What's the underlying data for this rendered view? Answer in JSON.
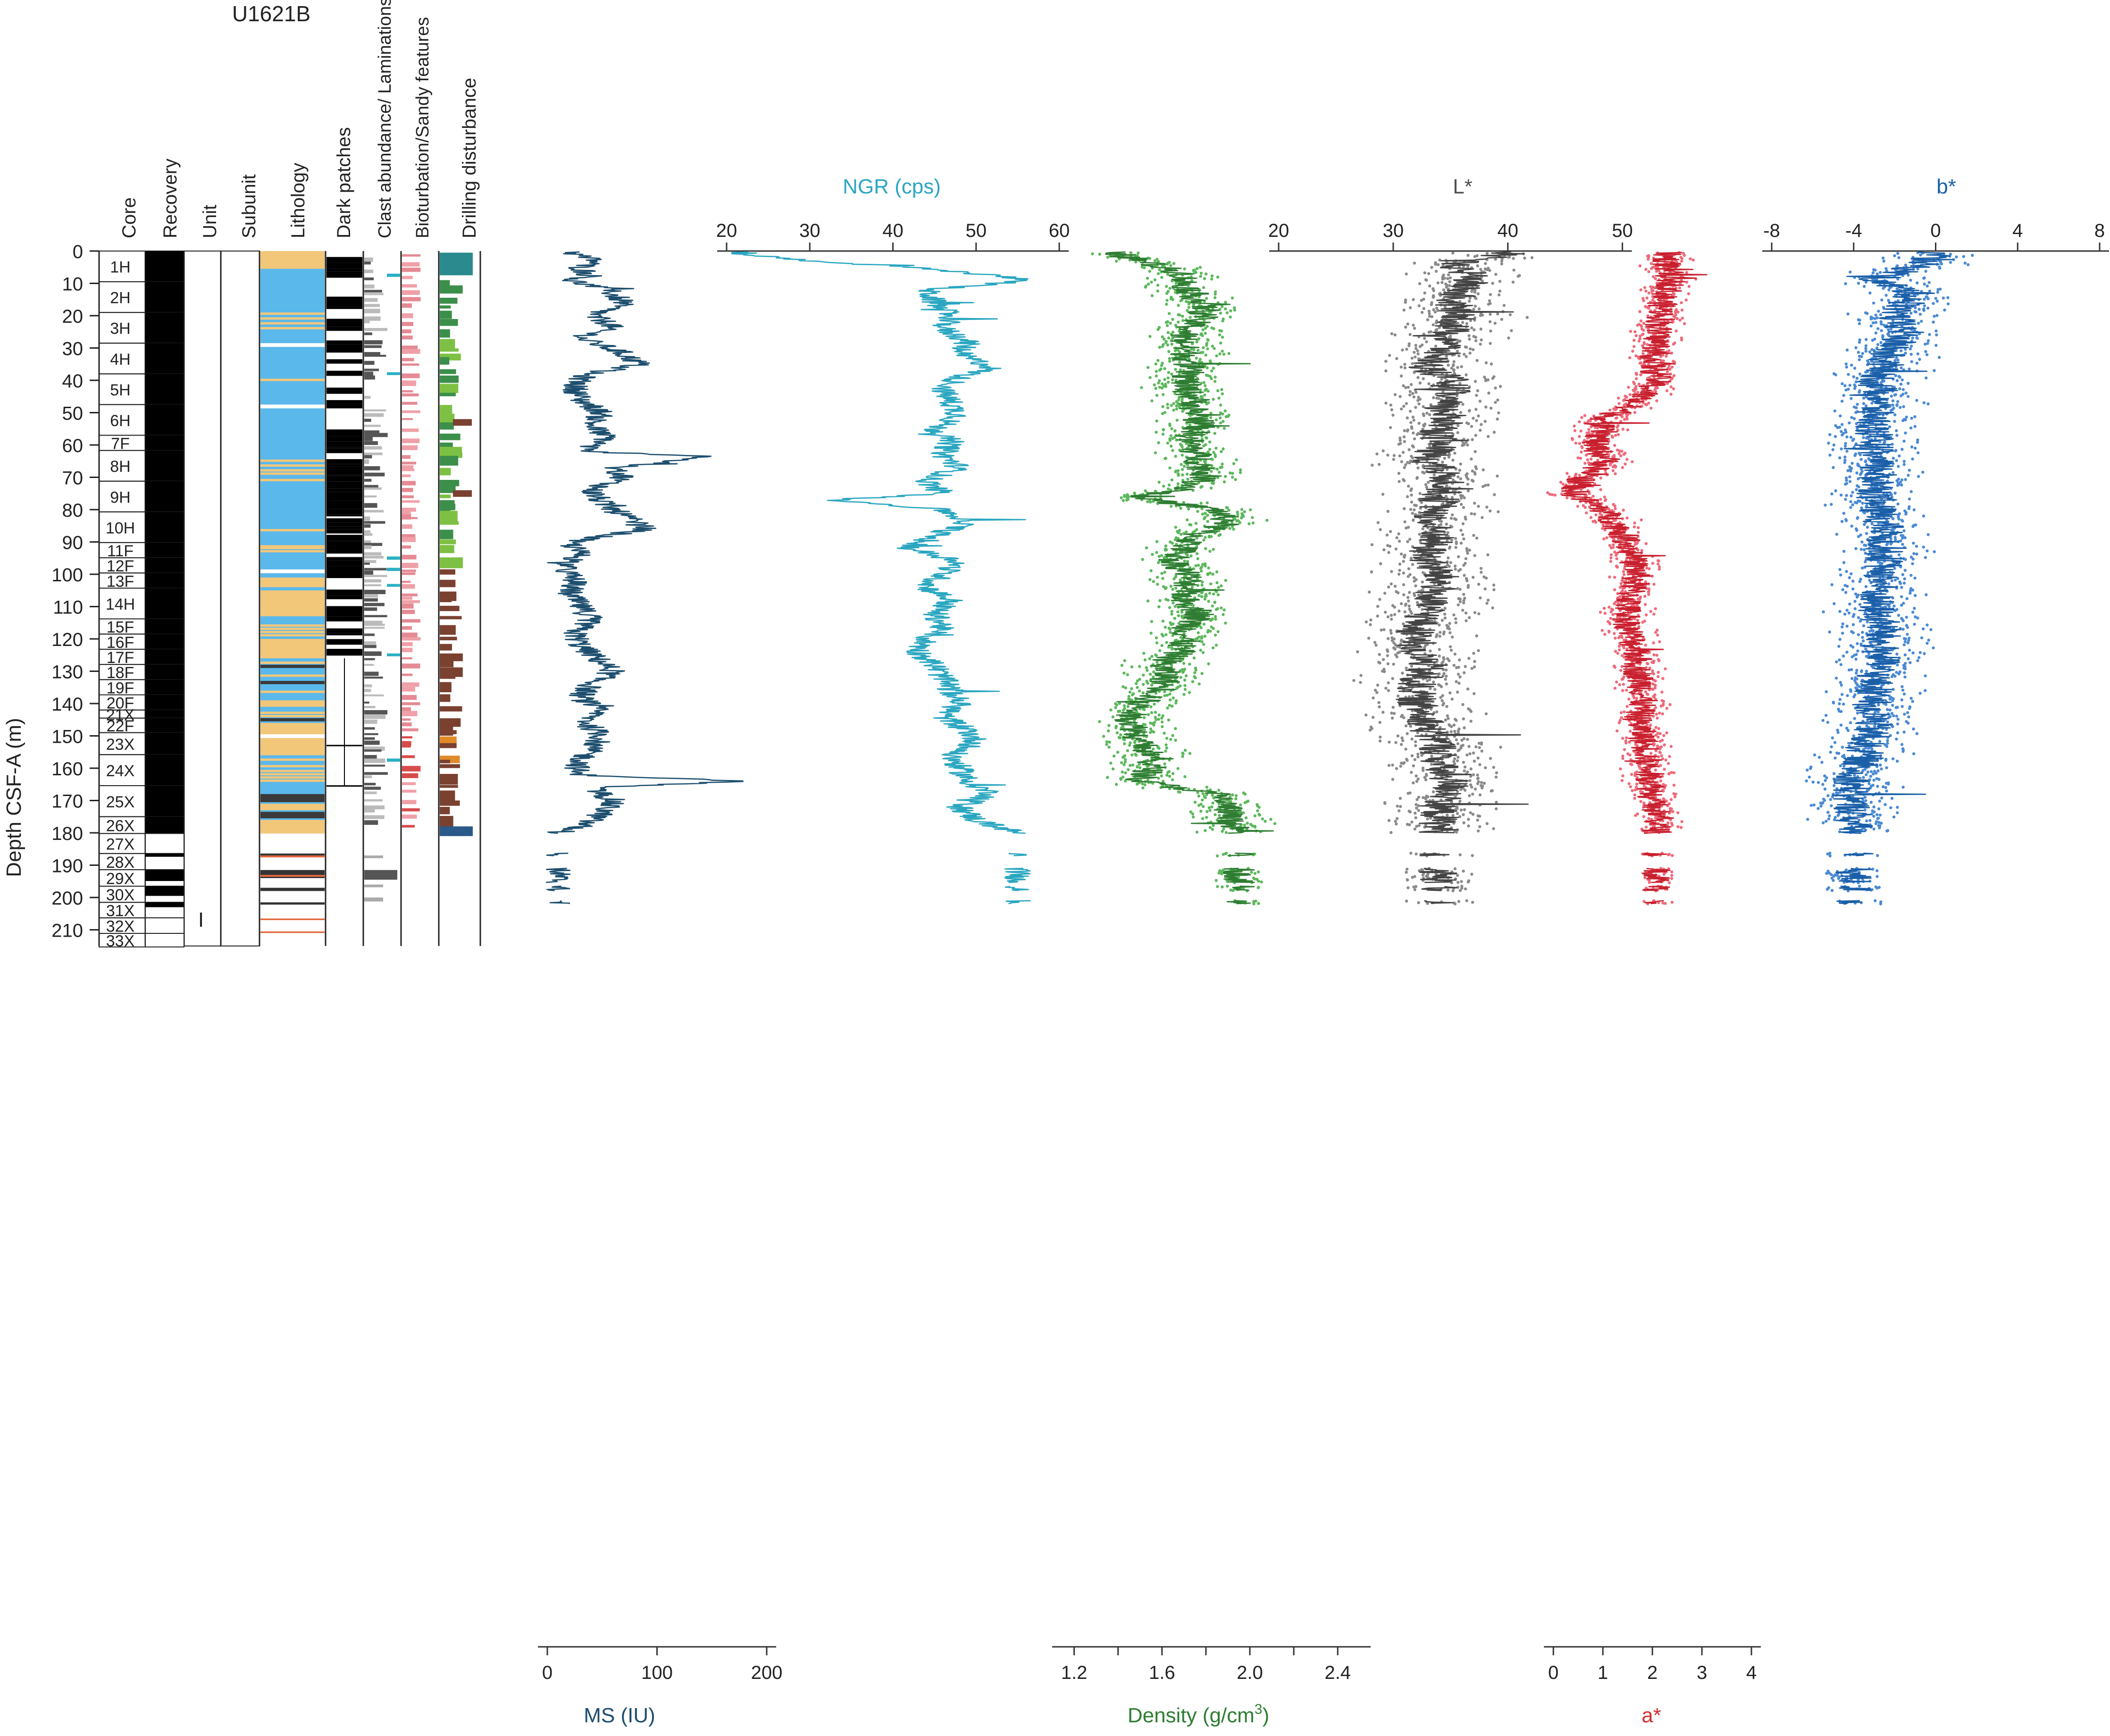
{
  "chart_data": {
    "type": "well-log",
    "title": "U1621B",
    "ylabel": "Depth CSF-A (m)",
    "ylim": [
      0,
      215
    ],
    "yticks": [
      0,
      10,
      20,
      30,
      40,
      50,
      60,
      70,
      80,
      90,
      100,
      110,
      120,
      130,
      140,
      150,
      160,
      170,
      180,
      190,
      200,
      210
    ],
    "column_headers": [
      "Core",
      "Recovery",
      "Unit",
      "Subunit",
      "Lithology",
      "Dark patches",
      "Clast abundance/ Laminations",
      "Bioturbation/Sandy features",
      "Drilling disturbance"
    ],
    "unit_label": "I",
    "cores": [
      {
        "name": "1H",
        "top": 0,
        "bottom": 9.5,
        "recovered": 9.5
      },
      {
        "name": "2H",
        "top": 9.5,
        "bottom": 19,
        "recovered": 9.5
      },
      {
        "name": "3H",
        "top": 19,
        "bottom": 28.5,
        "recovered": 9.5
      },
      {
        "name": "4H",
        "top": 28.5,
        "bottom": 38,
        "recovered": 9.5
      },
      {
        "name": "5H",
        "top": 38,
        "bottom": 47.5,
        "recovered": 9.5
      },
      {
        "name": "6H",
        "top": 47.5,
        "bottom": 57,
        "recovered": 9.5
      },
      {
        "name": "7F",
        "top": 57,
        "bottom": 61.7,
        "recovered": 4.7
      },
      {
        "name": "8H",
        "top": 61.7,
        "bottom": 71.2,
        "recovered": 9.5
      },
      {
        "name": "9H",
        "top": 71.2,
        "bottom": 80.7,
        "recovered": 9.5
      },
      {
        "name": "10H",
        "top": 80.7,
        "bottom": 90.2,
        "recovered": 9.5
      },
      {
        "name": "11F",
        "top": 90.2,
        "bottom": 94.9,
        "recovered": 4.7
      },
      {
        "name": "12F",
        "top": 94.9,
        "bottom": 99.6,
        "recovered": 4.7
      },
      {
        "name": "13F",
        "top": 99.6,
        "bottom": 104.3,
        "recovered": 4.7
      },
      {
        "name": "14H",
        "top": 104.3,
        "bottom": 113.8,
        "recovered": 9.5
      },
      {
        "name": "15F",
        "top": 113.8,
        "bottom": 118.5,
        "recovered": 4.7
      },
      {
        "name": "16F",
        "top": 118.5,
        "bottom": 123.2,
        "recovered": 4.7
      },
      {
        "name": "17F",
        "top": 123.2,
        "bottom": 127.9,
        "recovered": 4.7
      },
      {
        "name": "18F",
        "top": 127.9,
        "bottom": 132.6,
        "recovered": 4.7
      },
      {
        "name": "19F",
        "top": 132.6,
        "bottom": 137.3,
        "recovered": 4.7
      },
      {
        "name": "20F",
        "top": 137.3,
        "bottom": 142,
        "recovered": 4.7
      },
      {
        "name": "21X",
        "top": 142,
        "bottom": 144.5,
        "recovered": 2.5
      },
      {
        "name": "22F",
        "top": 144.5,
        "bottom": 149,
        "recovered": 4.5
      },
      {
        "name": "23X",
        "top": 149,
        "bottom": 155.8,
        "recovered": 6.8
      },
      {
        "name": "24X",
        "top": 155.8,
        "bottom": 165.4,
        "recovered": 9.6
      },
      {
        "name": "25X",
        "top": 165.4,
        "bottom": 175,
        "recovered": 9.6
      },
      {
        "name": "26X",
        "top": 175,
        "bottom": 180.2,
        "recovered": 5.2
      },
      {
        "name": "27X",
        "top": 180.2,
        "bottom": 186.4,
        "recovered": 0
      },
      {
        "name": "28X",
        "top": 186.4,
        "bottom": 191.4,
        "recovered": 1.0
      },
      {
        "name": "29X",
        "top": 191.4,
        "bottom": 196.5,
        "recovered": 3.5
      },
      {
        "name": "30X",
        "top": 196.5,
        "bottom": 201.5,
        "recovered": 3.0
      },
      {
        "name": "31X",
        "top": 201.5,
        "bottom": 206.3,
        "recovered": 1.5
      },
      {
        "name": "32X",
        "top": 206.3,
        "bottom": 211.1,
        "recovered": 0
      },
      {
        "name": "33X",
        "top": 211.1,
        "bottom": 215.3,
        "recovered": 0
      }
    ],
    "tracks": [
      {
        "name": "MS",
        "label": "MS (IU)",
        "axis_side": "bottom",
        "range": [
          0,
          200
        ],
        "ticks": [
          0,
          100,
          200
        ],
        "color": "#1d4e6e",
        "series": [
          {
            "depth": [
              1,
              3,
              5,
              8,
              9,
              12,
              16,
              20,
              23,
              27,
              31,
              35,
              38,
              42,
              46,
              50,
              54,
              58,
              62,
              63.5,
              67,
              70,
              74,
              78,
              82,
              86,
              90,
              94,
              98,
              102,
              106,
              110,
              114,
              118,
              122,
              126,
              130,
              134,
              138,
              142,
              146,
              150,
              154,
              158,
              162,
              164,
              166,
              170,
              174,
              178,
              180
            ],
            "value": [
              25,
              45,
              30,
              40,
              20,
              55,
              70,
              40,
              60,
              30,
              65,
              85,
              35,
              25,
              30,
              50,
              40,
              55,
              30,
              150,
              60,
              70,
              40,
              50,
              70,
              90,
              20,
              30,
              15,
              25,
              20,
              30,
              40,
              25,
              30,
              45,
              60,
              40,
              30,
              45,
              35,
              50,
              40,
              30,
              25,
              180,
              40,
              60,
              50,
              30,
              10
            ]
          }
        ]
      },
      {
        "name": "NGR",
        "label": "NGR (cps)",
        "axis_side": "top",
        "range": [
          20,
          60
        ],
        "ticks": [
          20,
          30,
          40,
          50,
          60
        ],
        "color": "#2aa6c0",
        "series": [
          {
            "depth": [
              1,
              3,
              5,
              7,
              9,
              12,
              16,
              20,
              24,
              28,
              32,
              36,
              39,
              43,
              47,
              51,
              55,
              59,
              63,
              67,
              71,
              75,
              77,
              80,
              84,
              88,
              92,
              96,
              100,
              104,
              108,
              112,
              116,
              120,
              124,
              128,
              132,
              136,
              140,
              144,
              148,
              152,
              156,
              160,
              164,
              168,
              172,
              176,
              180
            ],
            "value": [
              22,
              30,
              42,
              50,
              57,
              44,
              45,
              47,
              46,
              49,
              48,
              52,
              48,
              46,
              47,
              48,
              45,
              47,
              46,
              48,
              44,
              46,
              33,
              46,
              49,
              45,
              42,
              48,
              46,
              44,
              47,
              45,
              46,
              44,
              43,
              45,
              46,
              47,
              48,
              46,
              49,
              50,
              47,
              48,
              49,
              52,
              48,
              50,
              55
            ]
          }
        ]
      },
      {
        "name": "Density",
        "label": "Density (g/cm3)",
        "axis_side": "bottom",
        "range": [
          1.1,
          2.55
        ],
        "ticks": [
          1.2,
          1.6,
          2.0,
          2.4
        ],
        "color": "#2e7d32",
        "series": [
          {
            "depth": [
              0,
              2,
              4,
              7,
              10,
              14,
              18,
              22,
              26,
              30,
              34,
              38,
              42,
              46,
              50,
              54,
              58,
              62,
              66,
              70,
              74,
              76,
              80,
              84,
              88,
              92,
              96,
              100,
              104,
              108,
              112,
              116,
              120,
              124,
              128,
              132,
              136,
              140,
              144,
              148,
              152,
              156,
              160,
              164,
              168,
              172,
              176,
              180
            ],
            "value": [
              1.35,
              1.45,
              1.55,
              1.7,
              1.7,
              1.75,
              1.8,
              1.75,
              1.7,
              1.7,
              1.72,
              1.72,
              1.7,
              1.75,
              1.75,
              1.78,
              1.72,
              1.75,
              1.78,
              1.8,
              1.7,
              1.45,
              1.85,
              1.9,
              1.75,
              1.7,
              1.65,
              1.72,
              1.72,
              1.7,
              1.78,
              1.72,
              1.7,
              1.68,
              1.6,
              1.62,
              1.6,
              1.5,
              1.45,
              1.48,
              1.5,
              1.55,
              1.55,
              1.5,
              1.85,
              1.9,
              1.9,
              1.95
            ]
          }
        ]
      },
      {
        "name": "L*",
        "label": "L*",
        "axis_side": "top",
        "range": [
          20,
          55
        ],
        "ticks": [
          20,
          30,
          40,
          50
        ],
        "color": "#505050",
        "series": [
          {
            "depth": [
              1,
              4,
              8,
              12,
              16,
              20,
              24,
              28,
              32,
              36,
              40,
              44,
              48,
              52,
              56,
              60,
              64,
              68,
              72,
              76,
              80,
              84,
              88,
              92,
              96,
              100,
              104,
              108,
              112,
              116,
              120,
              124,
              128,
              132,
              136,
              140,
              144,
              148,
              152,
              156,
              160,
              164,
              168,
              172,
              176,
              180
            ],
            "value": [
              40,
              35,
              37,
              36,
              35,
              36,
              35,
              35,
              34,
              33,
              35,
              35,
              34,
              35,
              34,
              34,
              33,
              34,
              35,
              34,
              34,
              33,
              34,
              33,
              33,
              34,
              34,
              33,
              33,
              32,
              32,
              32,
              33,
              32,
              32,
              32,
              33,
              33,
              34,
              34,
              34,
              35,
              35,
              34,
              34,
              34
            ]
          }
        ]
      },
      {
        "name": "a*",
        "label": "a*",
        "axis_side": "bottom",
        "range": [
          -0.45,
          4.6
        ],
        "ticks": [
          0,
          1,
          2,
          3,
          4
        ],
        "color": "#d32f2f",
        "series": [
          {
            "depth": [
              1,
              5,
              10,
              15,
              20,
              25,
              30,
              35,
              40,
              45,
              50,
              53,
              56,
              60,
              65,
              70,
              75,
              80,
              85,
              90,
              95,
              100,
              105,
              110,
              115,
              120,
              125,
              130,
              135,
              140,
              145,
              150,
              155,
              160,
              165,
              170,
              175,
              180
            ],
            "value": [
              2.3,
              2.3,
              2.4,
              2.2,
              2.2,
              2.1,
              2.1,
              2.0,
              2.1,
              1.8,
              1.3,
              0.9,
              1.0,
              0.8,
              1.1,
              0.6,
              0.4,
              1.0,
              1.3,
              1.5,
              1.6,
              1.7,
              1.6,
              1.5,
              1.5,
              1.6,
              1.7,
              1.7,
              1.8,
              1.8,
              1.7,
              1.8,
              1.9,
              1.9,
              2.0,
              2.0,
              2.1,
              2.1
            ]
          }
        ]
      },
      {
        "name": "b*",
        "label": "b*",
        "axis_side": "top",
        "range": [
          -8,
          8
        ],
        "ticks": [
          -8,
          -4,
          0,
          4,
          8
        ],
        "color": "#1a5fa8",
        "series": [
          {
            "depth": [
              1,
              5,
              9,
              13,
              17,
              21,
              25,
              29,
              33,
              37,
              41,
              45,
              49,
              53,
              57,
              61,
              65,
              69,
              73,
              77,
              81,
              85,
              89,
              93,
              97,
              101,
              105,
              109,
              113,
              117,
              121,
              125,
              129,
              133,
              137,
              141,
              145,
              149,
              153,
              157,
              161,
              165,
              169,
              173,
              177,
              180
            ],
            "value": [
              0,
              -1,
              -3,
              -1,
              -1.5,
              -2,
              -1.5,
              -2,
              -2.5,
              -2.5,
              -3,
              -2.5,
              -3,
              -3,
              -3,
              -3,
              -3,
              -2.8,
              -2.8,
              -3,
              -2.8,
              -2.5,
              -2.5,
              -2.5,
              -2.5,
              -2.6,
              -2.8,
              -3,
              -2.8,
              -2.5,
              -2.8,
              -2.6,
              -2.8,
              -3,
              -3,
              -3.2,
              -3,
              -3.2,
              -3.5,
              -3.5,
              -4,
              -4,
              -4.2,
              -4,
              -4,
              -4
            ]
          }
        ]
      }
    ]
  }
}
